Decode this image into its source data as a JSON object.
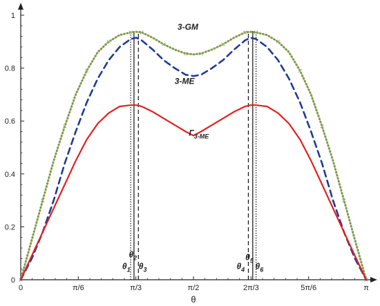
{
  "chart_data": {
    "type": "line",
    "xlabel": "θ",
    "ylabel": "",
    "xlim": [
      0,
      3.14159
    ],
    "ylim": [
      0,
      1.0
    ],
    "x_ticks": [
      {
        "value": 0,
        "label": "0"
      },
      {
        "value": 0.5236,
        "label": "π/6"
      },
      {
        "value": 1.0472,
        "label": "π/3"
      },
      {
        "value": 1.5708,
        "label": "π/2"
      },
      {
        "value": 2.0944,
        "label": "2π/3"
      },
      {
        "value": 2.618,
        "label": "5π/6"
      },
      {
        "value": 3.14159,
        "label": "π"
      }
    ],
    "y_ticks": [
      {
        "value": 0,
        "label": "0"
      },
      {
        "value": 0.2,
        "label": "0.2"
      },
      {
        "value": 0.4,
        "label": "0.4"
      },
      {
        "value": 0.6,
        "label": "0.6"
      },
      {
        "value": 0.8,
        "label": "0.8"
      },
      {
        "value": 1.0,
        "label": "1"
      }
    ],
    "series": [
      {
        "name": "3-GM",
        "color": "#7f9a4a",
        "style": "dotted",
        "x": [
          0,
          0.1,
          0.2,
          0.3,
          0.4,
          0.5,
          0.6,
          0.7,
          0.8,
          0.9,
          1.0,
          1.05,
          1.1,
          1.2,
          1.3,
          1.4,
          1.5,
          1.5708,
          1.64,
          1.74,
          1.84,
          1.94,
          2.04,
          2.09,
          2.14,
          2.24,
          2.34,
          2.44,
          2.54,
          2.64,
          2.74,
          2.84,
          2.94,
          3.04,
          3.14159
        ],
        "y": [
          0,
          0.15,
          0.3,
          0.45,
          0.58,
          0.7,
          0.79,
          0.86,
          0.9,
          0.925,
          0.935,
          0.937,
          0.935,
          0.915,
          0.89,
          0.87,
          0.855,
          0.852,
          0.855,
          0.87,
          0.89,
          0.915,
          0.935,
          0.937,
          0.935,
          0.925,
          0.9,
          0.86,
          0.79,
          0.7,
          0.58,
          0.45,
          0.3,
          0.15,
          0
        ]
      },
      {
        "name": "3-ME",
        "color": "#1f3a93",
        "style": "dashed",
        "x": [
          0,
          0.1,
          0.2,
          0.3,
          0.4,
          0.5,
          0.6,
          0.7,
          0.8,
          0.9,
          1.0,
          1.05,
          1.1,
          1.2,
          1.3,
          1.4,
          1.5,
          1.5708,
          1.64,
          1.74,
          1.84,
          1.94,
          2.04,
          2.09,
          2.14,
          2.24,
          2.34,
          2.44,
          2.54,
          2.64,
          2.74,
          2.84,
          2.94,
          3.04,
          3.14159
        ],
        "y": [
          0,
          0.08,
          0.18,
          0.3,
          0.44,
          0.56,
          0.67,
          0.76,
          0.83,
          0.88,
          0.91,
          0.915,
          0.905,
          0.87,
          0.83,
          0.8,
          0.775,
          0.77,
          0.775,
          0.8,
          0.83,
          0.87,
          0.905,
          0.915,
          0.91,
          0.88,
          0.83,
          0.76,
          0.67,
          0.56,
          0.44,
          0.3,
          0.18,
          0.08,
          0
        ]
      },
      {
        "name": "Γ3-ME",
        "color": "#e02020",
        "style": "solid",
        "x": [
          0,
          0.1,
          0.2,
          0.3,
          0.4,
          0.5,
          0.6,
          0.7,
          0.8,
          0.9,
          1.0,
          1.05,
          1.1,
          1.2,
          1.3,
          1.4,
          1.5,
          1.5708,
          1.64,
          1.74,
          1.84,
          1.94,
          2.04,
          2.09,
          2.14,
          2.24,
          2.34,
          2.44,
          2.54,
          2.64,
          2.74,
          2.84,
          2.94,
          3.04,
          3.14159
        ],
        "y": [
          0,
          0.09,
          0.18,
          0.27,
          0.36,
          0.45,
          0.53,
          0.59,
          0.63,
          0.655,
          0.66,
          0.66,
          0.655,
          0.635,
          0.61,
          0.585,
          0.56,
          0.545,
          0.56,
          0.585,
          0.61,
          0.635,
          0.655,
          0.66,
          0.66,
          0.655,
          0.63,
          0.59,
          0.53,
          0.45,
          0.36,
          0.27,
          0.18,
          0.09,
          0
        ]
      }
    ],
    "series_labels": [
      {
        "text": "3-GM",
        "x": 1.52,
        "y": 0.945
      },
      {
        "text": "3-ME",
        "x": 1.49,
        "y": 0.74
      },
      {
        "text": "Γ",
        "sub": "3-ME",
        "x": 1.62,
        "y": 0.545
      }
    ],
    "vertical_lines": [
      {
        "name": "θ1",
        "x": 1.0,
        "style": "dotted"
      },
      {
        "name": "θ2",
        "x": 1.03,
        "style": "solid"
      },
      {
        "name": "θ3",
        "x": 1.07,
        "style": "dashed"
      },
      {
        "name": "θ4",
        "x": 2.07,
        "style": "dashed"
      },
      {
        "name": "θ5",
        "x": 2.11,
        "style": "solid"
      },
      {
        "name": "θ6",
        "x": 2.14,
        "style": "dotted"
      }
    ],
    "theta_labels": [
      {
        "main": "θ",
        "sub": "1",
        "x": 0.96,
        "y": 0.04
      },
      {
        "main": "θ",
        "sub": "2",
        "x": 1.02,
        "y": 0.085
      },
      {
        "main": "θ",
        "sub": "3",
        "x": 1.11,
        "y": 0.04
      },
      {
        "main": "θ",
        "sub": "4",
        "x": 2.0,
        "y": 0.04
      },
      {
        "main": "θ",
        "sub": "5",
        "x": 2.08,
        "y": 0.075
      },
      {
        "main": "θ",
        "sub": "6",
        "x": 2.17,
        "y": 0.04
      }
    ]
  }
}
